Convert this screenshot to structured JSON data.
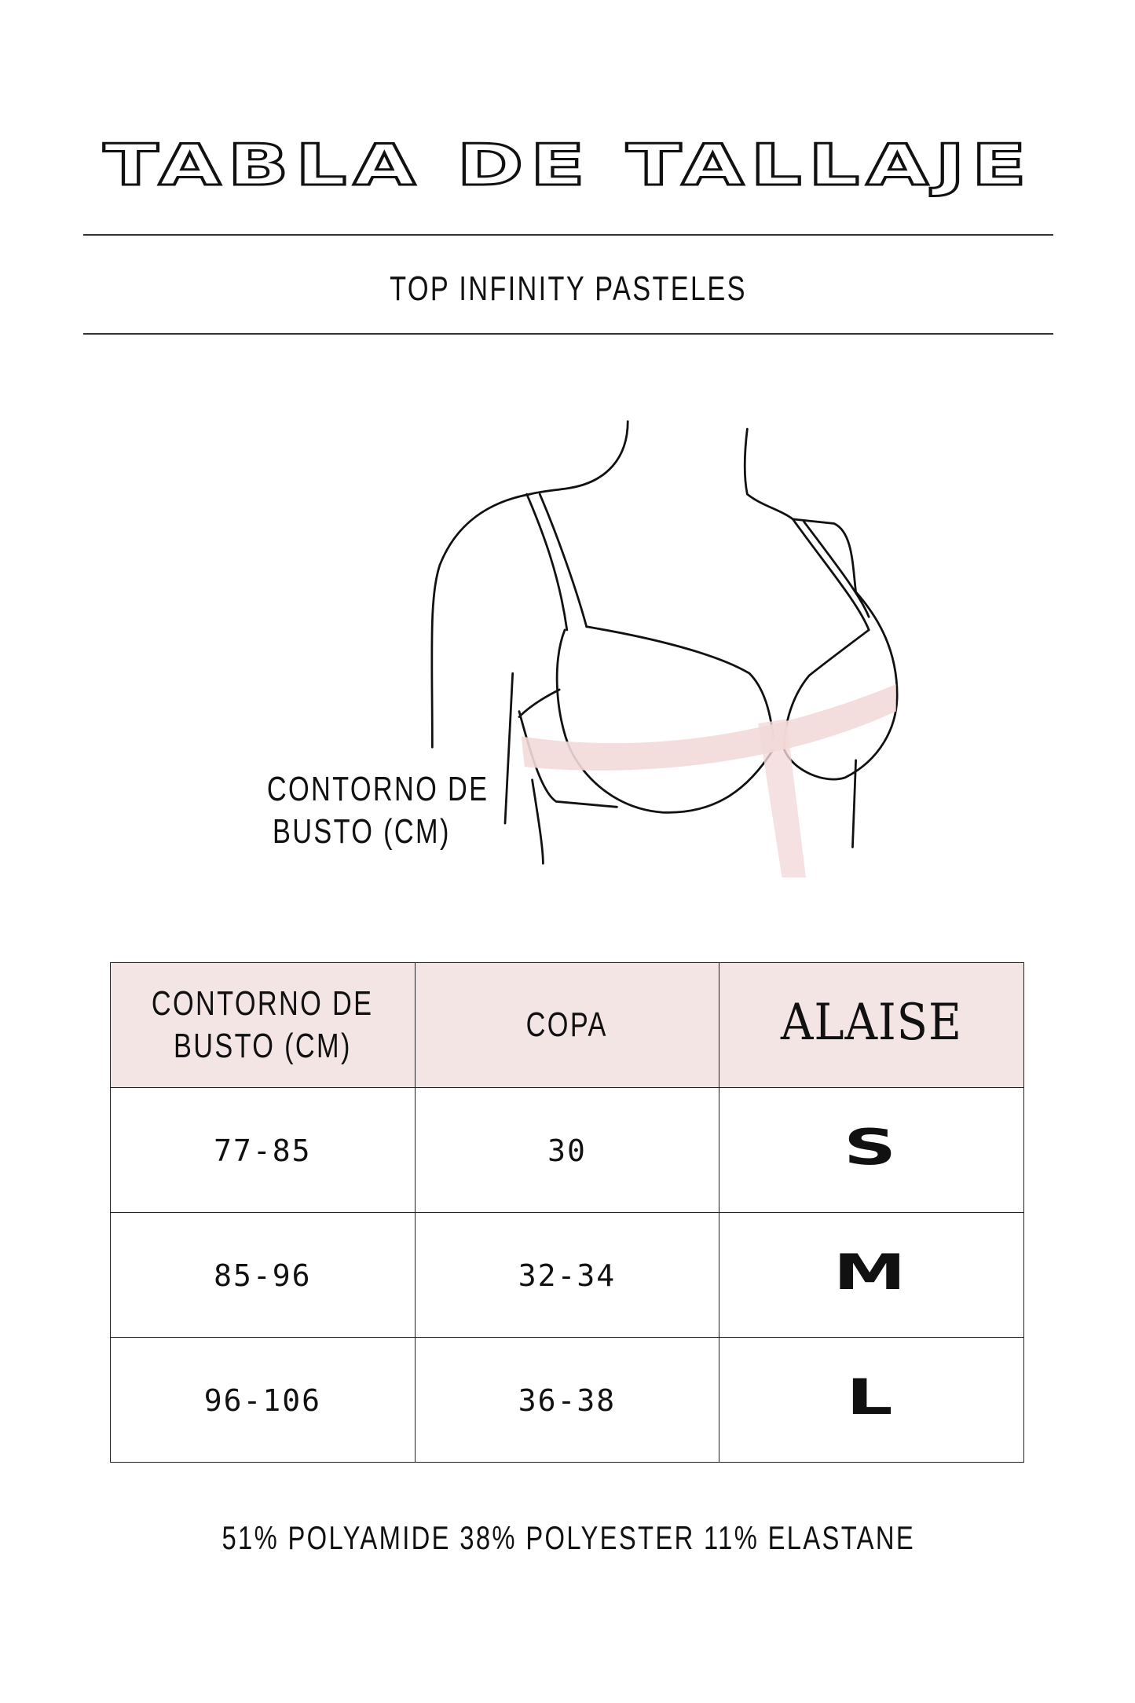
{
  "header": {
    "title": "TABLA DE TALLAJE",
    "subtitle": "TOP INFINITY PASTELES"
  },
  "illustration": {
    "label_line1": "CONTORNO DE",
    "label_line2": "BUSTO (CM)",
    "band_color": "#f2d9d9"
  },
  "table": {
    "headers": {
      "bust_line1": "CONTORNO DE",
      "bust_line2": "BUSTO (CM)",
      "cup": "COPA",
      "brand": "ALAISE"
    },
    "header_bg": "#f4e5e5",
    "rows": [
      {
        "bust": "77-85",
        "cup": "30",
        "size": "S"
      },
      {
        "bust": "85-96",
        "cup": "32-34",
        "size": "M"
      },
      {
        "bust": "96-106",
        "cup": "36-38",
        "size": "L"
      }
    ]
  },
  "footer": {
    "composition": "51% POLYAMIDE 38% POLYESTER 11% ELASTANE"
  }
}
